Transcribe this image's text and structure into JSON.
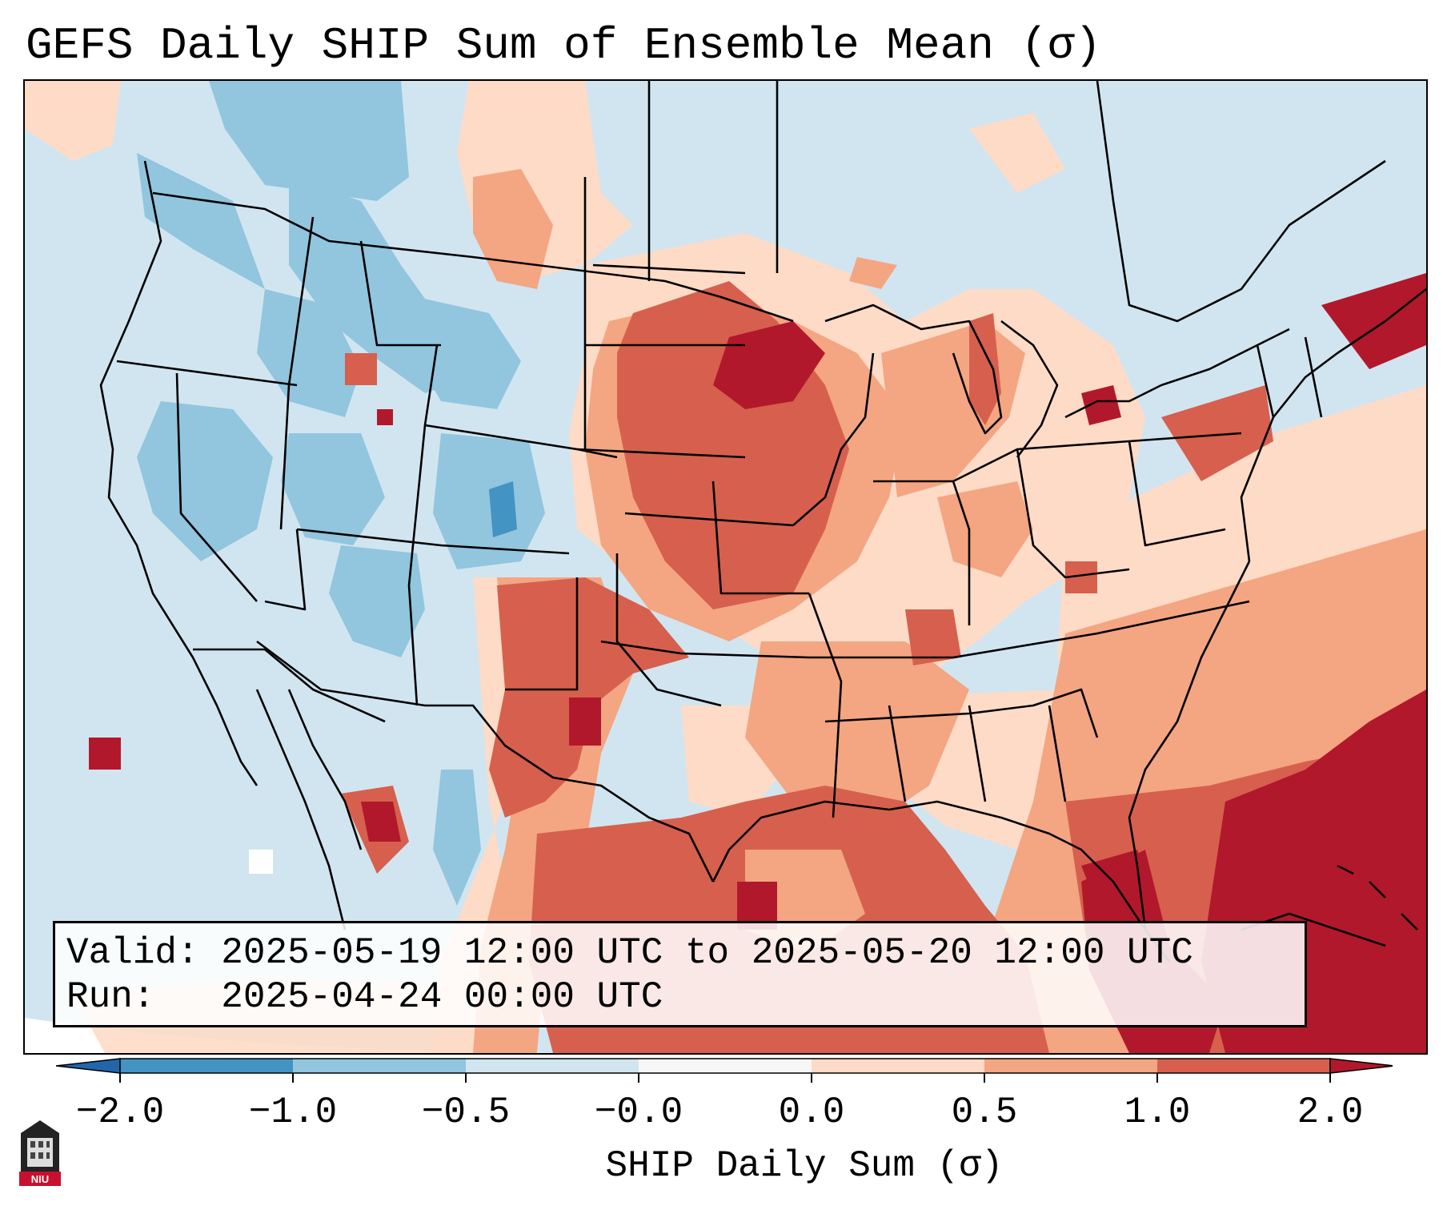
{
  "title": "GEFS Daily SHIP Sum of Ensemble Mean (σ)",
  "info": {
    "valid_label": "Valid:",
    "valid_value": "2025-05-19 12:00 UTC to 2025-05-20 12:00 UTC",
    "run_label": "Run:",
    "run_value": "2025-04-24 00:00 UTC"
  },
  "colorbar": {
    "label": "SHIP Daily Sum (σ)",
    "tick_labels": [
      "−2.0",
      "−1.0",
      "−0.5",
      "−0.0",
      "0.0",
      "0.5",
      "1.0",
      "2.0"
    ],
    "colors": {
      "under": "#2166ac",
      "neg_strong": "#4393c3",
      "neg_mid": "#92c5de",
      "neg_weak": "#d1e5f0",
      "zero": "#f7f7f7",
      "pos_weak": "#fddbc7",
      "pos_mid": "#f4a582",
      "pos_strong": "#d6604d",
      "over": "#b2182b"
    }
  },
  "logo": {
    "text": "NIU",
    "color": "#c8102e"
  }
}
